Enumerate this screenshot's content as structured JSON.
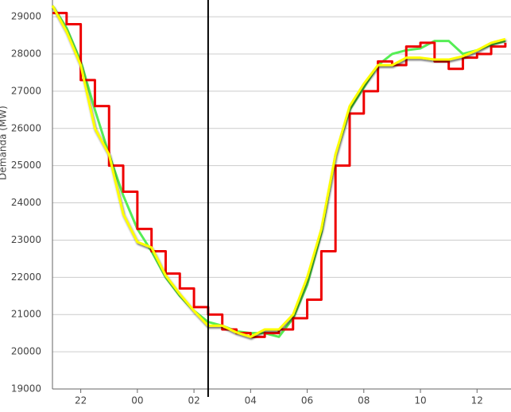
{
  "chart_data": {
    "type": "line",
    "y_label": "Demanda (MW)",
    "x": [
      21,
      21.5,
      22,
      22.5,
      23,
      23.5,
      24,
      24.5,
      25,
      25.5,
      26,
      26.5,
      27,
      27.5,
      28,
      28.5,
      29,
      29.5,
      30,
      30.5,
      31,
      31.5,
      32,
      32.5,
      33,
      33.5,
      34,
      34.5,
      35,
      35.5,
      36,
      36.5,
      37
    ],
    "series": [
      {
        "color": "#55ee55",
        "style": "line",
        "values": [
          29300,
          28700,
          27800,
          26500,
          25300,
          24200,
          23300,
          22700,
          22000,
          21500,
          21100,
          20800,
          20700,
          20550,
          20500,
          20500,
          20400,
          20900,
          21800,
          23200,
          25300,
          26500,
          27100,
          27700,
          28000,
          28100,
          28150,
          28350,
          28350,
          28000,
          28100,
          28250,
          28350
        ]
      },
      {
        "color": "#ee0000",
        "style": "step",
        "values": [
          29100,
          28800,
          27300,
          26600,
          25000,
          24300,
          23300,
          22700,
          22100,
          21700,
          21200,
          21000,
          20600,
          20500,
          20400,
          20500,
          20600,
          20900,
          21400,
          22700,
          25000,
          26400,
          27000,
          27800,
          27700,
          28200,
          28300,
          27800,
          27600,
          27900,
          28000,
          28200,
          28300
        ]
      },
      {
        "color": "#ffff00",
        "style": "line",
        "values": [
          29300,
          28600,
          27700,
          26000,
          25300,
          23700,
          22950,
          22800,
          22050,
          21550,
          21100,
          20700,
          20700,
          20520,
          20400,
          20600,
          20600,
          21000,
          22000,
          23300,
          25300,
          26600,
          27200,
          27700,
          27700,
          27900,
          27900,
          27850,
          27850,
          27940,
          28100,
          28300,
          28400
        ]
      }
    ],
    "xlim": [
      21,
      37.2
    ],
    "xticks": [
      {
        "value": 22,
        "label": "22"
      },
      {
        "value": 24,
        "label": "00"
      },
      {
        "value": 26,
        "label": "02"
      },
      {
        "value": 28,
        "label": "04"
      },
      {
        "value": 30,
        "label": "06"
      },
      {
        "value": 32,
        "label": "08"
      },
      {
        "value": 34,
        "label": "10"
      },
      {
        "value": 36,
        "label": "12"
      }
    ],
    "ylim": [
      19000,
      29450
    ],
    "yticks": [
      19000,
      20000,
      21000,
      22000,
      23000,
      24000,
      25000,
      26000,
      27000,
      28000,
      29000
    ],
    "grid": true,
    "cursor_x": 26.5
  }
}
